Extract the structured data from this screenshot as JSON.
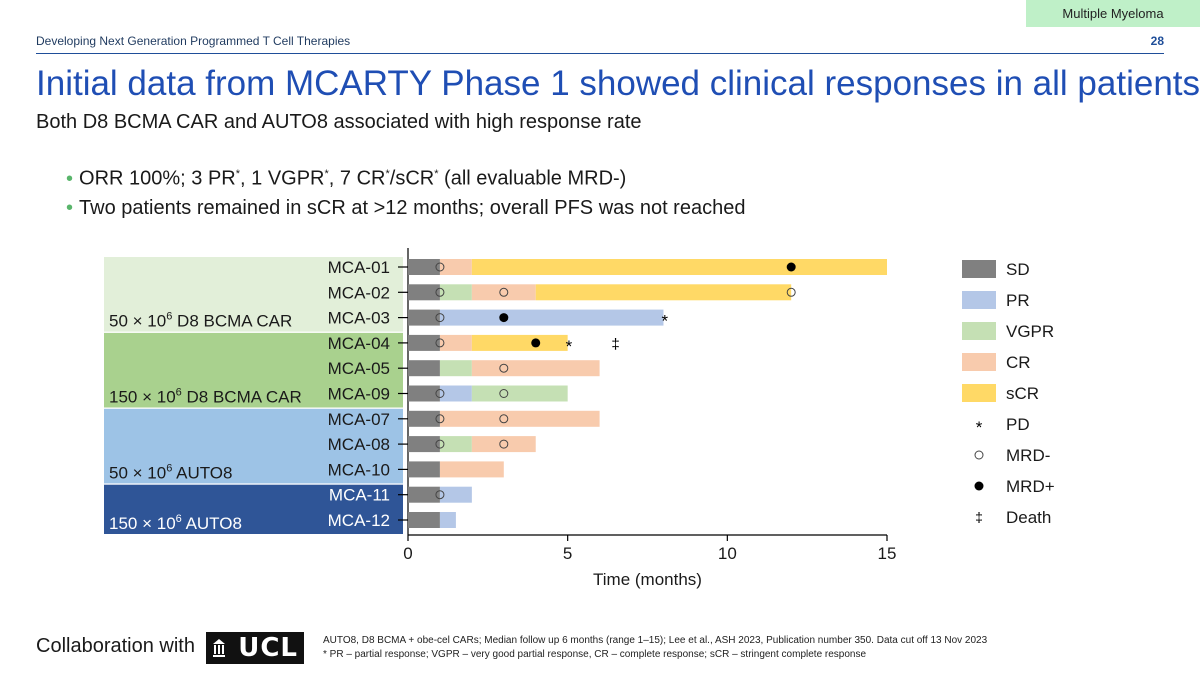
{
  "header": {
    "tag": "Multiple Myeloma",
    "subject": "Developing Next Generation Programmed T Cell Therapies",
    "page_number": "28",
    "title": "Initial data from MCARTY Phase 1 showed clinical responses in all patients",
    "subtitle": "Both D8 BCMA CAR and AUTO8 associated with high response rate"
  },
  "bullets": {
    "b1_a": "ORR 100%; 3 PR",
    "b1_b": ", 1 VGPR",
    "b1_c": ", 7 CR",
    "b1_d": "/sCR",
    "b1_e": " (all evaluable MRD-)",
    "star": "*",
    "b2": "Two patients remained in sCR at >12 months; overall PFS was not reached"
  },
  "footer": {
    "collab": "Collaboration with",
    "logo_text": "UCL",
    "note1": "AUTO8, D8 BCMA + obe-cel CARs; Median follow up 6 months (range 1–15); Lee et al., ASH 2023, Publication number 350. Data cut off 13 Nov 2023",
    "note2": "* PR – partial response; VGPR – very good partial response, CR – complete response; sCR – stringent complete response"
  },
  "chart_data": {
    "type": "bar",
    "orientation": "horizontal-swimmer",
    "xlabel": "Time (months)",
    "xlim": [
      0,
      15
    ],
    "xticks": [
      0,
      5,
      10,
      15
    ],
    "colors": {
      "SD": "#808080",
      "PR": "#b4c7e7",
      "VGPR": "#c5e0b4",
      "CR": "#f8cbad",
      "sCR": "#ffd966"
    },
    "legend": {
      "position": "right",
      "items": [
        {
          "key": "SD",
          "label": "SD",
          "kind": "swatch"
        },
        {
          "key": "PR",
          "label": "PR",
          "kind": "swatch"
        },
        {
          "key": "VGPR",
          "label": "VGPR",
          "kind": "swatch"
        },
        {
          "key": "CR",
          "label": "CR",
          "kind": "swatch"
        },
        {
          "key": "sCR",
          "label": "sCR",
          "kind": "swatch"
        },
        {
          "key": "PD",
          "label": "PD",
          "kind": "symbol",
          "symbol": "*"
        },
        {
          "key": "MRDneg",
          "label": "MRD-",
          "kind": "symbol",
          "symbol": "○"
        },
        {
          "key": "MRDpos",
          "label": "MRD+",
          "kind": "symbol",
          "symbol": "●"
        },
        {
          "key": "Death",
          "label": "Death",
          "kind": "symbol",
          "symbol": "‡"
        }
      ]
    },
    "groups": [
      {
        "label": "50 × 10",
        "sup": "6",
        "label_rest": " D8 BCMA CAR",
        "rows": [
          0,
          2
        ],
        "fill": "#e2efd9",
        "text": "#1a1a1a"
      },
      {
        "label": "150 × 10",
        "sup": "6",
        "label_rest": " D8 BCMA CAR",
        "rows": [
          3,
          5
        ],
        "fill": "#a9d18e",
        "text": "#1a1a1a"
      },
      {
        "label": "50 × 10",
        "sup": "6",
        "label_rest": " AUTO8",
        "rows": [
          6,
          8
        ],
        "fill": "#9dc3e6",
        "text": "#1a1a1a"
      },
      {
        "label": "150 × 10",
        "sup": "6",
        "label_rest": " AUTO8",
        "rows": [
          9,
          10
        ],
        "fill": "#2f5597",
        "text": "#ffffff"
      }
    ],
    "patients": [
      {
        "id": "MCA-01",
        "segments": [
          [
            "SD",
            0,
            1
          ],
          [
            "CR",
            1,
            2
          ],
          [
            "sCR",
            2,
            15
          ]
        ],
        "markers": [
          [
            "MRDneg",
            1
          ],
          [
            "MRDpos",
            12
          ]
        ]
      },
      {
        "id": "MCA-02",
        "segments": [
          [
            "SD",
            0,
            1
          ],
          [
            "VGPR",
            1,
            2
          ],
          [
            "CR",
            2,
            4
          ],
          [
            "sCR",
            4,
            12
          ]
        ],
        "markers": [
          [
            "MRDneg",
            1
          ],
          [
            "MRDneg",
            3
          ],
          [
            "MRDneg",
            12
          ]
        ]
      },
      {
        "id": "MCA-03",
        "segments": [
          [
            "SD",
            0,
            1
          ],
          [
            "PR",
            1,
            8
          ]
        ],
        "markers": [
          [
            "MRDneg",
            1
          ],
          [
            "MRDpos",
            3
          ],
          [
            "PD",
            8
          ]
        ]
      },
      {
        "id": "MCA-04",
        "segments": [
          [
            "SD",
            0,
            1
          ],
          [
            "CR",
            1,
            2
          ],
          [
            "sCR",
            2,
            5
          ]
        ],
        "markers": [
          [
            "MRDneg",
            1
          ],
          [
            "MRDpos",
            4
          ],
          [
            "PD",
            5
          ],
          [
            "Death",
            6.5
          ]
        ]
      },
      {
        "id": "MCA-05",
        "segments": [
          [
            "SD",
            0,
            1
          ],
          [
            "VGPR",
            1,
            2
          ],
          [
            "CR",
            2,
            6
          ]
        ],
        "markers": [
          [
            "MRDneg",
            3
          ]
        ]
      },
      {
        "id": "MCA-09",
        "segments": [
          [
            "SD",
            0,
            1
          ],
          [
            "PR",
            1,
            2
          ],
          [
            "VGPR",
            2,
            5
          ]
        ],
        "markers": [
          [
            "MRDneg",
            1
          ],
          [
            "MRDneg",
            3
          ]
        ]
      },
      {
        "id": "MCA-07",
        "segments": [
          [
            "SD",
            0,
            1
          ],
          [
            "CR",
            1,
            6
          ]
        ],
        "markers": [
          [
            "MRDneg",
            1
          ],
          [
            "MRDneg",
            3
          ]
        ]
      },
      {
        "id": "MCA-08",
        "segments": [
          [
            "SD",
            0,
            1
          ],
          [
            "VGPR",
            1,
            2
          ],
          [
            "CR",
            2,
            4
          ]
        ],
        "markers": [
          [
            "MRDneg",
            1
          ],
          [
            "MRDneg",
            3
          ]
        ]
      },
      {
        "id": "MCA-10",
        "segments": [
          [
            "SD",
            0,
            1
          ],
          [
            "CR",
            1,
            3
          ]
        ],
        "markers": []
      },
      {
        "id": "MCA-11",
        "segments": [
          [
            "SD",
            0,
            1
          ],
          [
            "PR",
            1,
            2
          ]
        ],
        "markers": [
          [
            "MRDneg",
            1
          ]
        ]
      },
      {
        "id": "MCA-12",
        "segments": [
          [
            "SD",
            0,
            1
          ],
          [
            "PR",
            1,
            1.5
          ]
        ],
        "markers": []
      }
    ]
  }
}
